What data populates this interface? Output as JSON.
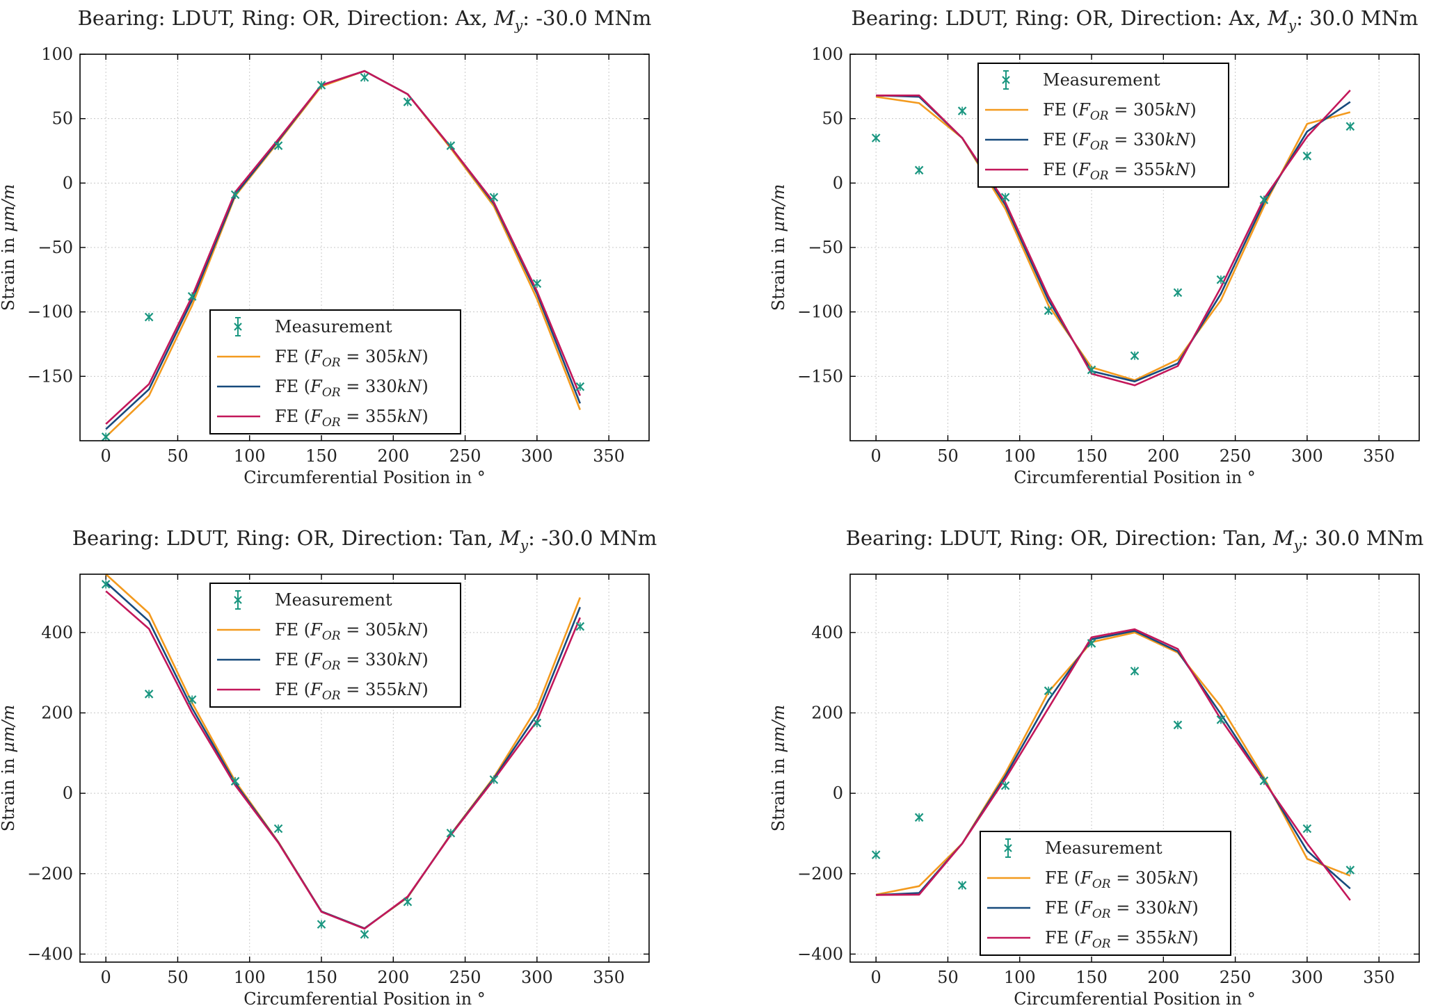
{
  "colors": {
    "measurement": "#1a9680",
    "fe_305": "#f39a1e",
    "fe_330": "#174a7c",
    "fe_355": "#c3175a"
  },
  "common": {
    "xlabel": "Circumferential Position in °",
    "ylabel": "Strain in μm/m",
    "x_ticks": [
      0,
      50,
      100,
      150,
      200,
      250,
      300,
      350
    ],
    "legend": [
      "Measurement",
      "FE (F_OR = 305kN)",
      "FE (F_OR = 330kN)",
      "FE (F_OR = 355kN)"
    ]
  },
  "chart_data": [
    {
      "type": "line",
      "title": "Bearing: LDUT, Ring: OR, Direction: Ax, M_y: -30.0 MNm",
      "title_pre": "Bearing: LDUT, Ring: OR, Direction: Ax, ",
      "title_post": ": -30.0 MNm",
      "xlabel": "Circumferential Position in °",
      "ylabel": "Strain in μm/m",
      "xlim": [
        -18,
        378
      ],
      "ylim": [
        -200,
        100
      ],
      "y_ticks": [
        100,
        50,
        0,
        -50,
        -100,
        -150
      ],
      "y_tick_labels": [
        "100",
        "50",
        "0",
        "−50",
        "−100",
        "−150"
      ],
      "legend_position": "lower-center",
      "x": [
        0,
        30,
        60,
        90,
        120,
        150,
        180,
        210,
        240,
        270,
        300,
        330
      ],
      "measurement": [
        -197,
        -104,
        -88,
        -9,
        29,
        76,
        82,
        63,
        29,
        -11,
        -78,
        -158
      ],
      "series": [
        {
          "name": "FE (F_OR = 305kN)",
          "values": [
            -197,
            -165,
            -95,
            -10,
            32,
            75,
            87,
            69,
            27,
            -18,
            -90,
            -176
          ]
        },
        {
          "name": "FE (F_OR = 330kN)",
          "values": [
            -191,
            -160,
            -91,
            -9,
            33,
            76,
            87,
            69,
            28,
            -16,
            -86,
            -171
          ]
        },
        {
          "name": "FE (F_OR = 355kN)",
          "values": [
            -187,
            -156,
            -88,
            -7,
            34,
            76,
            87,
            69,
            28,
            -15,
            -84,
            -165
          ]
        }
      ]
    },
    {
      "type": "line",
      "title": "Bearing: LDUT, Ring: OR, Direction: Ax, M_y: 30.0 MNm",
      "title_pre": "Bearing: LDUT, Ring: OR, Direction: Ax, ",
      "title_post": ": 30.0 MNm",
      "xlabel": "Circumferential Position in °",
      "ylabel": "Strain in μm/m",
      "xlim": [
        -18,
        378
      ],
      "ylim": [
        -200,
        100
      ],
      "y_ticks": [
        100,
        50,
        0,
        -50,
        -100,
        -150
      ],
      "y_tick_labels": [
        "100",
        "50",
        "0",
        "−50",
        "−100",
        "−150"
      ],
      "legend_position": "upper-center",
      "x": [
        0,
        30,
        60,
        90,
        120,
        150,
        180,
        210,
        240,
        270,
        300,
        330
      ],
      "measurement": [
        35,
        10,
        56,
        -11,
        -99,
        -145,
        -134,
        -85,
        -75,
        -13,
        21,
        44
      ],
      "series": [
        {
          "name": "FE (F_OR = 305kN)",
          "values": [
            67,
            62,
            35,
            -20,
            -95,
            -143,
            -153,
            -137,
            -91,
            -18,
            46,
            55
          ]
        },
        {
          "name": "FE (F_OR = 330kN)",
          "values": [
            68,
            67,
            35,
            -17,
            -91,
            -146,
            -154,
            -140,
            -86,
            -15,
            40,
            63
          ]
        },
        {
          "name": "FE (F_OR = 355kN)",
          "values": [
            68,
            68,
            35,
            -15,
            -88,
            -148,
            -157,
            -142,
            -81,
            -12,
            36,
            72
          ]
        }
      ]
    },
    {
      "type": "line",
      "title": "Bearing: LDUT, Ring: OR, Direction: Tan, M_y: -30.0 MNm",
      "title_pre": "Bearing: LDUT, Ring: OR, Direction: Tan, ",
      "title_post": ": -30.0 MNm",
      "xlabel": "Circumferential Position in °",
      "ylabel": "Strain in μm/m",
      "xlim": [
        -18,
        378
      ],
      "ylim": [
        -420,
        545
      ],
      "y_ticks": [
        400,
        200,
        0,
        -200,
        -400
      ],
      "y_tick_labels": [
        "400",
        "200",
        "0",
        "−200",
        "−400"
      ],
      "legend_position": "upper-center",
      "x": [
        0,
        30,
        60,
        90,
        120,
        150,
        180,
        210,
        240,
        270,
        300,
        330
      ],
      "measurement": [
        520,
        247,
        233,
        30,
        -88,
        -326,
        -351,
        -270,
        -99,
        34,
        175,
        415
      ],
      "series": [
        {
          "name": "FE (F_OR = 305kN)",
          "values": [
            545,
            448,
            225,
            30,
            -121,
            -294,
            -336,
            -259,
            -102,
            40,
            213,
            487
          ]
        },
        {
          "name": "FE (F_OR = 330kN)",
          "values": [
            525,
            428,
            212,
            25,
            -122,
            -294,
            -336,
            -258,
            -103,
            37,
            196,
            463
          ]
        },
        {
          "name": "FE (F_OR = 355kN)",
          "values": [
            503,
            409,
            200,
            20,
            -123,
            -295,
            -337,
            -257,
            -104,
            34,
            180,
            437
          ]
        }
      ]
    },
    {
      "type": "line",
      "title": "Bearing: LDUT, Ring: OR, Direction: Tan, M_y: 30.0 MNm",
      "title_pre": "Bearing: LDUT, Ring: OR, Direction: Tan, ",
      "title_post": ": 30.0 MNm",
      "xlabel": "Circumferential Position in °",
      "ylabel": "Strain in μm/m",
      "xlim": [
        -18,
        378
      ],
      "ylim": [
        -420,
        545
      ],
      "y_ticks": [
        400,
        200,
        0,
        -200,
        -400
      ],
      "y_tick_labels": [
        "400",
        "200",
        "0",
        "−200",
        "−400"
      ],
      "legend_position": "lower-center",
      "x": [
        0,
        30,
        60,
        90,
        120,
        150,
        180,
        210,
        240,
        270,
        300,
        330
      ],
      "measurement": [
        -153,
        -60,
        -229,
        19,
        255,
        373,
        304,
        170,
        183,
        31,
        -88,
        -191
      ],
      "series": [
        {
          "name": "FE (F_OR = 305kN)",
          "values": [
            -252,
            -231,
            -125,
            50,
            252,
            376,
            400,
            350,
            216,
            39,
            -163,
            -205
          ]
        },
        {
          "name": "FE (F_OR = 330kN)",
          "values": [
            -253,
            -248,
            -125,
            43,
            232,
            383,
            404,
            353,
            197,
            33,
            -143,
            -237
          ]
        },
        {
          "name": "FE (F_OR = 355kN)",
          "values": [
            -253,
            -252,
            -125,
            36,
            212,
            388,
            408,
            359,
            184,
            30,
            -125,
            -266
          ]
        }
      ]
    }
  ]
}
